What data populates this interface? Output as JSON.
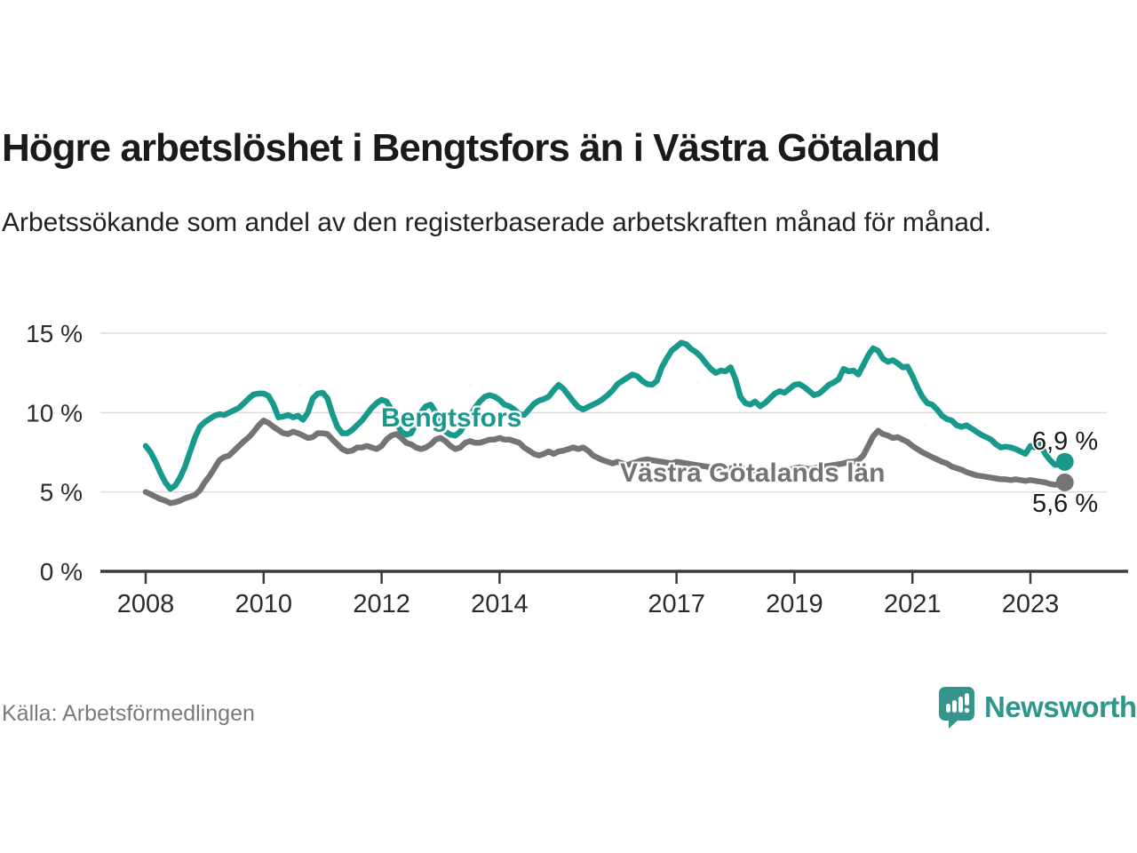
{
  "header": {
    "title": "Högre arbetslöshet i Bengtsfors än i Västra Götaland",
    "subtitle": "Arbetssökande som andel av den registerbaserade arbetskraften månad för månad."
  },
  "footer": {
    "source": "Källa: Arbetsförmedlingen",
    "brand": "Newsworthy",
    "brand_color": "#2F968E"
  },
  "chart_data": {
    "type": "line",
    "unit": "%",
    "frequency": "monthly",
    "x_start": "2008-01",
    "x_end": "2023-08",
    "ylim": [
      0,
      15
    ],
    "grid": "horizontal",
    "legend_position": "inline-labels",
    "y_ticks": [
      {
        "value": 0,
        "label": "0 %"
      },
      {
        "value": 5,
        "label": "5 %"
      },
      {
        "value": 10,
        "label": "10 %"
      },
      {
        "value": 15,
        "label": "15 %"
      }
    ],
    "x_ticks": [
      {
        "year": 2008,
        "label": "2008"
      },
      {
        "year": 2010,
        "label": "2010"
      },
      {
        "year": 2012,
        "label": "2012"
      },
      {
        "year": 2014,
        "label": "2014"
      },
      {
        "year": 2017,
        "label": "2017"
      },
      {
        "year": 2019,
        "label": "2019"
      },
      {
        "year": 2021,
        "label": "2021"
      },
      {
        "year": 2023,
        "label": "2023"
      }
    ],
    "series": [
      {
        "name": "Bengtsfors",
        "color": "#17998C",
        "end_value": 6.9,
        "label_value": "6,9 %",
        "values": [
          7.9,
          7.5,
          6.9,
          6.2,
          5.6,
          5.2,
          5.4,
          5.9,
          6.6,
          7.5,
          8.4,
          9.1,
          9.4,
          9.6,
          9.8,
          9.9,
          9.85,
          10.0,
          10.15,
          10.3,
          10.6,
          10.9,
          11.15,
          11.2,
          11.2,
          11.05,
          10.5,
          9.7,
          9.75,
          9.85,
          9.7,
          9.8,
          9.55,
          10.0,
          10.9,
          11.2,
          11.25,
          10.9,
          9.9,
          9.1,
          8.7,
          8.7,
          8.9,
          9.2,
          9.5,
          9.9,
          10.3,
          10.6,
          10.8,
          10.7,
          10.2,
          9.4,
          8.8,
          8.6,
          8.7,
          9.3,
          10.0,
          10.4,
          10.5,
          10.0,
          9.3,
          8.8,
          8.6,
          8.55,
          8.8,
          9.3,
          9.8,
          10.3,
          10.7,
          11.0,
          11.1,
          11.0,
          10.8,
          10.5,
          10.4,
          10.2,
          9.9,
          9.85,
          10.2,
          10.55,
          10.75,
          10.85,
          11.0,
          11.4,
          11.75,
          11.5,
          11.1,
          10.7,
          10.35,
          10.2,
          10.35,
          10.5,
          10.65,
          10.85,
          11.1,
          11.4,
          11.8,
          12.0,
          12.2,
          12.4,
          12.3,
          12.0,
          11.8,
          11.75,
          12.0,
          12.85,
          13.4,
          13.9,
          14.15,
          14.4,
          14.3,
          14.0,
          13.8,
          13.5,
          13.1,
          12.75,
          12.5,
          12.65,
          12.6,
          12.85,
          12.1,
          11.0,
          10.6,
          10.5,
          10.7,
          10.4,
          10.6,
          10.9,
          11.2,
          11.35,
          11.25,
          11.5,
          11.75,
          11.8,
          11.6,
          11.35,
          11.1,
          11.2,
          11.45,
          11.75,
          11.9,
          12.1,
          12.75,
          12.6,
          12.65,
          12.4,
          13.0,
          13.6,
          14.05,
          13.9,
          13.4,
          13.2,
          13.3,
          13.1,
          12.85,
          12.9,
          12.3,
          11.6,
          11.0,
          10.6,
          10.5,
          10.2,
          9.8,
          9.6,
          9.5,
          9.2,
          9.1,
          9.2,
          9.0,
          8.8,
          8.6,
          8.45,
          8.3,
          8.0,
          7.8,
          7.85,
          7.8,
          7.7,
          7.55,
          7.4,
          7.9,
          7.8,
          8.0,
          7.4,
          7.0,
          6.7,
          6.75,
          6.9
        ]
      },
      {
        "name": "Västra Götalands län",
        "color": "#747474",
        "end_value": 5.6,
        "label_value": "5,6 %",
        "values": [
          5.0,
          4.85,
          4.7,
          4.55,
          4.45,
          4.3,
          4.35,
          4.45,
          4.6,
          4.7,
          4.8,
          5.1,
          5.6,
          6.0,
          6.5,
          7.0,
          7.2,
          7.3,
          7.6,
          7.9,
          8.2,
          8.45,
          8.8,
          9.2,
          9.5,
          9.35,
          9.1,
          8.9,
          8.7,
          8.65,
          8.8,
          8.7,
          8.55,
          8.4,
          8.45,
          8.7,
          8.7,
          8.65,
          8.3,
          8.0,
          7.7,
          7.55,
          7.6,
          7.8,
          7.8,
          7.9,
          7.8,
          7.7,
          7.9,
          8.3,
          8.55,
          8.65,
          8.4,
          8.1,
          8.0,
          7.8,
          7.7,
          7.8,
          8.0,
          8.3,
          8.4,
          8.2,
          7.9,
          7.7,
          7.8,
          8.1,
          8.2,
          8.1,
          8.1,
          8.2,
          8.3,
          8.3,
          8.4,
          8.3,
          8.3,
          8.2,
          8.1,
          7.8,
          7.6,
          7.4,
          7.3,
          7.4,
          7.55,
          7.4,
          7.55,
          7.6,
          7.7,
          7.8,
          7.7,
          7.8,
          7.6,
          7.3,
          7.15,
          7.0,
          6.9,
          6.8,
          6.9,
          6.8,
          6.7,
          6.8,
          6.9,
          7.0,
          7.05,
          7.0,
          6.95,
          6.9,
          6.85,
          6.8,
          6.9,
          6.85,
          6.8,
          6.75,
          6.7,
          6.65,
          6.6,
          6.55,
          6.5,
          6.5,
          6.45,
          6.5,
          6.55,
          6.5,
          6.45,
          6.4,
          6.35,
          6.3,
          6.25,
          6.3,
          6.35,
          6.3,
          6.35,
          6.4,
          6.5,
          6.55,
          6.5,
          6.45,
          6.5,
          6.55,
          6.6,
          6.65,
          6.7,
          6.75,
          6.8,
          6.9,
          6.9,
          7.0,
          7.3,
          7.9,
          8.5,
          8.85,
          8.65,
          8.55,
          8.4,
          8.45,
          8.3,
          8.15,
          7.9,
          7.7,
          7.5,
          7.35,
          7.2,
          7.05,
          6.9,
          6.8,
          6.6,
          6.5,
          6.4,
          6.25,
          6.15,
          6.05,
          6.0,
          5.95,
          5.9,
          5.85,
          5.8,
          5.8,
          5.75,
          5.8,
          5.75,
          5.7,
          5.75,
          5.7,
          5.65,
          5.6,
          5.5,
          5.45,
          5.5,
          5.6
        ]
      }
    ]
  }
}
